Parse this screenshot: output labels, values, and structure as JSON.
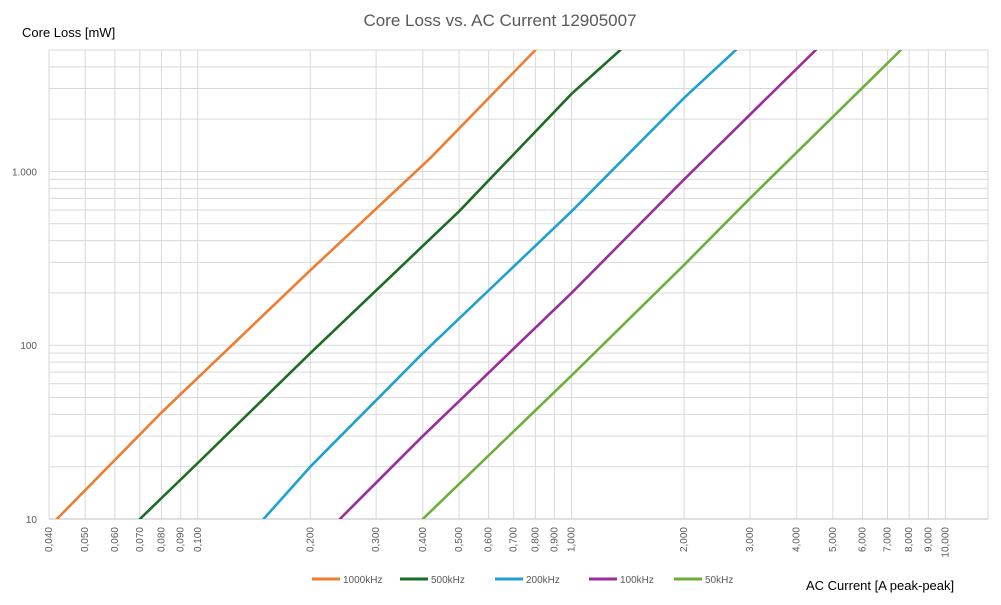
{
  "chart_data": {
    "type": "line",
    "title": "Core Loss vs. AC Current 12905007",
    "ylabel": "Core Loss [mW]",
    "xlabel": "AC Current [A peak-peak]",
    "x_scale": "log",
    "y_scale": "log",
    "xlim": [
      0.04,
      13
    ],
    "ylim": [
      10,
      5000
    ],
    "grid": true,
    "legend_position": "bottom",
    "x_ticks": [
      "0,040",
      "0,050",
      "0,060",
      "0,070",
      "0,080",
      "0,090",
      "0,100",
      "0,200",
      "0,300",
      "0,400",
      "0,500",
      "0,600",
      "0,700",
      "0,800",
      "0,900",
      "1,000",
      "2,000",
      "3,000",
      "4,000",
      "5,000",
      "6,000",
      "7,000",
      "8,000",
      "9,000",
      "10,000"
    ],
    "x_tick_values": [
      0.04,
      0.05,
      0.06,
      0.07,
      0.08,
      0.09,
      0.1,
      0.2,
      0.3,
      0.4,
      0.5,
      0.6,
      0.7,
      0.8,
      0.9,
      1,
      2,
      3,
      4,
      5,
      6,
      7,
      8,
      9,
      10
    ],
    "y_ticks": [
      "10",
      "100",
      "1.000"
    ],
    "y_tick_values": [
      10,
      100,
      1000
    ],
    "series": [
      {
        "name": "1000kHz",
        "color": "#ED7D31",
        "x": [
          0.042,
          0.08,
          0.2,
          0.42,
          0.8
        ],
        "y": [
          10,
          41,
          270,
          1200,
          5000
        ]
      },
      {
        "name": "500kHz",
        "color": "#1E6B24",
        "x": [
          0.07,
          0.1,
          0.2,
          0.5,
          1.0,
          1.35
        ],
        "y": [
          10,
          21,
          90,
          590,
          2800,
          5000
        ]
      },
      {
        "name": "200kHz",
        "color": "#1FA0D0",
        "x": [
          0.15,
          0.2,
          0.4,
          1.0,
          2.0,
          2.75
        ],
        "y": [
          10,
          20,
          90,
          590,
          2650,
          5000
        ]
      },
      {
        "name": "100kHz",
        "color": "#9B2D9B",
        "x": [
          0.24,
          0.4,
          1.0,
          2.0,
          4.5
        ],
        "y": [
          10,
          30,
          200,
          900,
          5000
        ]
      },
      {
        "name": "50kHz",
        "color": "#6AAF3B",
        "x": [
          0.4,
          1.0,
          2.0,
          3.0,
          7.6
        ],
        "y": [
          10,
          67,
          290,
          700,
          5000
        ]
      }
    ]
  }
}
